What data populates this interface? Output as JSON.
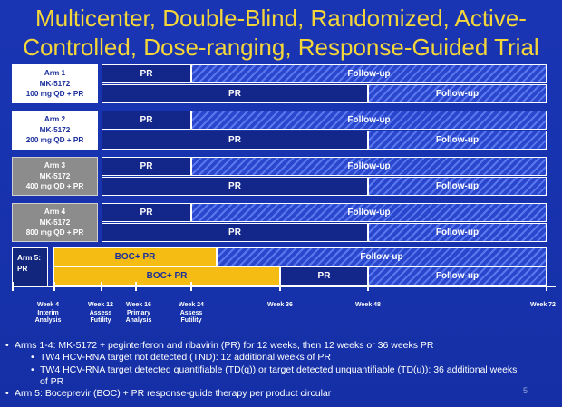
{
  "slide": {
    "title_line1": "Multicenter, Double-Blind, Randomized, Active-",
    "title_line2": "Controlled, Dose-ranging, Response-Guided Trial",
    "page_number": "5"
  },
  "arms": [
    {
      "line1": "Arm 1",
      "line2": "MK-5172",
      "line3": "100 mg QD + PR",
      "row1": {
        "a": "PR",
        "b": "Follow-up"
      },
      "row2": {
        "a": "PR",
        "b": "Follow-up"
      }
    },
    {
      "line1": "Arm 2",
      "line2": "MK-5172",
      "line3": "200 mg QD + PR",
      "row1": {
        "a": "PR",
        "b": "Follow-up"
      },
      "row2": {
        "a": "PR",
        "b": "Follow-up"
      }
    },
    {
      "line1": "Arm 3",
      "line2": "MK-5172",
      "line3": "400 mg QD + PR",
      "row1": {
        "a": "PR",
        "b": "Follow-up"
      },
      "row2": {
        "a": "PR",
        "b": "Follow-up"
      }
    },
    {
      "line1": "Arm 4",
      "line2": "MK-5172",
      "line3": "800 mg QD + PR",
      "row1": {
        "a": "PR",
        "b": "Follow-up"
      },
      "row2": {
        "a": "PR",
        "b": "Follow-up"
      }
    },
    {
      "line1": "Arm 5:",
      "line2": "PR",
      "row1": {
        "a": "BOC+ PR",
        "b": "Follow-up"
      },
      "row2": {
        "a": "BOC+ PR",
        "b": "PR",
        "c": "Follow-up"
      }
    }
  ],
  "timeline": [
    {
      "l1": "Week 4",
      "l2": "Interim",
      "l3": "Analysis"
    },
    {
      "l1": "Week 12",
      "l2": "Assess",
      "l3": "Futility"
    },
    {
      "l1": "Week 16",
      "l2": "Primary",
      "l3": "Analysis"
    },
    {
      "l1": "Week 24",
      "l2": "Assess",
      "l3": "Futility"
    },
    {
      "l1": "Week 36"
    },
    {
      "l1": "Week 48"
    },
    {
      "l1": "Week 72"
    }
  ],
  "bullets": {
    "b1": "Arms 1-4: MK-5172 + peginterferon and ribavirin  (PR) for 12 weeks, then 12 weeks or 36 weeks PR",
    "b1a": "TW4 HCV-RNA target not detected (TND): 12 additional weeks of PR",
    "b1b_line1": "TW4 HCV-RNA target detected quantifiable (TD(q)) or target detected unquantifiable (TD(u)): 36 additional weeks",
    "b1b_line2": "of PR",
    "b2": "Arm 5: Boceprevir (BOC) + PR response-guide therapy per product circular"
  },
  "colors": {
    "background": "#1a35b4",
    "title": "#f5d63a",
    "solid_bar": "#13268a",
    "hatched_bar": "#2a4ad4",
    "boc_bar": "#f5bd14",
    "gray_label": "#8c8c8c"
  }
}
